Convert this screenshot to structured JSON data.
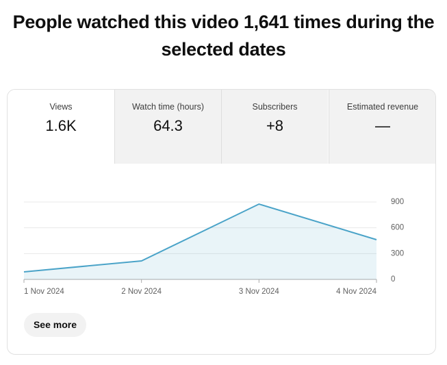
{
  "title": "People watched this video 1,641 times during the selected dates",
  "tabs": [
    {
      "label": "Views",
      "value": "1.6K"
    },
    {
      "label": "Watch time (hours)",
      "value": "64.3"
    },
    {
      "label": "Subscribers",
      "value": "+8"
    },
    {
      "label": "Estimated revenue",
      "value": "—"
    }
  ],
  "chart_data": {
    "type": "area",
    "categories": [
      "1 Nov 2024",
      "2 Nov 2024",
      "3 Nov 2024",
      "4 Nov 2024"
    ],
    "values": [
      88,
      215,
      876,
      462
    ],
    "color": "#4aa3c8",
    "ylim": [
      0,
      900
    ],
    "yticks": [
      0,
      300,
      600,
      900
    ],
    "grid": true
  },
  "button": "See more"
}
